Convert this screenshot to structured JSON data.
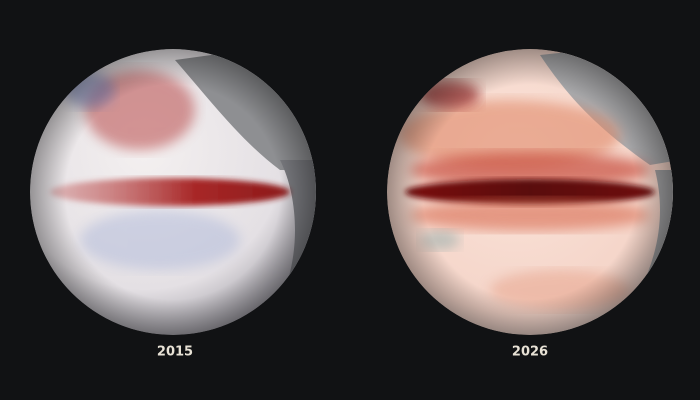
{
  "panels": [
    {
      "label": "2015"
    },
    {
      "label": "2026"
    }
  ]
}
